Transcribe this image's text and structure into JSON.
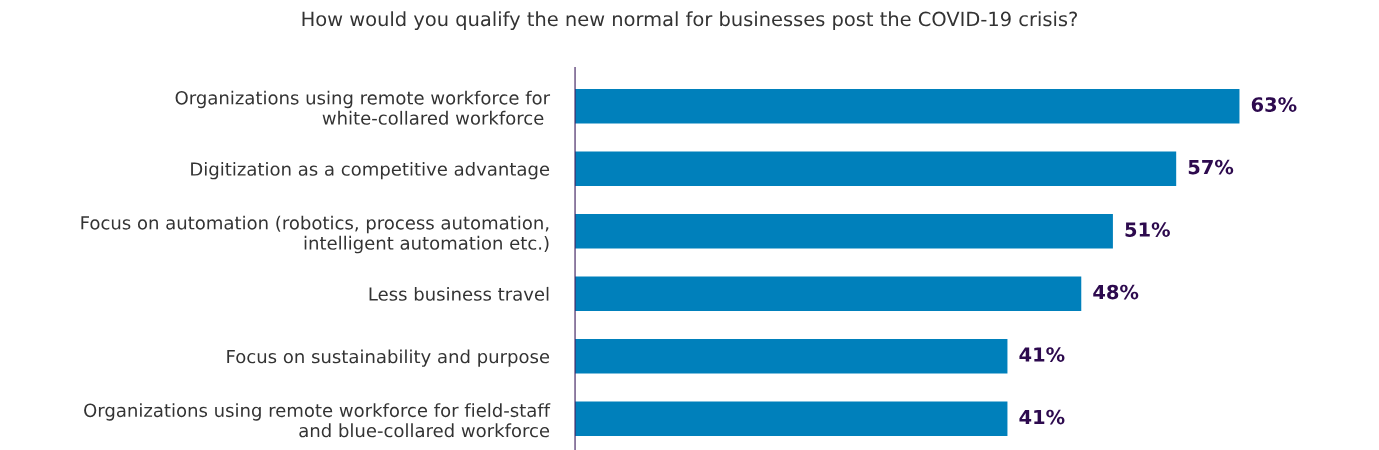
{
  "chart_data": {
    "type": "bar",
    "orientation": "horizontal",
    "title": "How would you qualify the new normal for businesses post the COVID-19 crisis?",
    "categories": [
      "Organizations using remote workforce for\nwhite-collared workforce ",
      "Digitization as a competitive advantage",
      "Focus on automation (robotics, process automation,\nintelligent automation etc.)",
      "Less business travel",
      "Focus on sustainability and purpose",
      "Organizations using remote workforce for field-staff\nand blue-collared workforce"
    ],
    "values": [
      63,
      57,
      51,
      48,
      41,
      41
    ],
    "value_labels": [
      "63%",
      "57%",
      "51%",
      "48%",
      "41%",
      "41%"
    ],
    "color": "#0080bb",
    "grid": false,
    "legend": false
  }
}
